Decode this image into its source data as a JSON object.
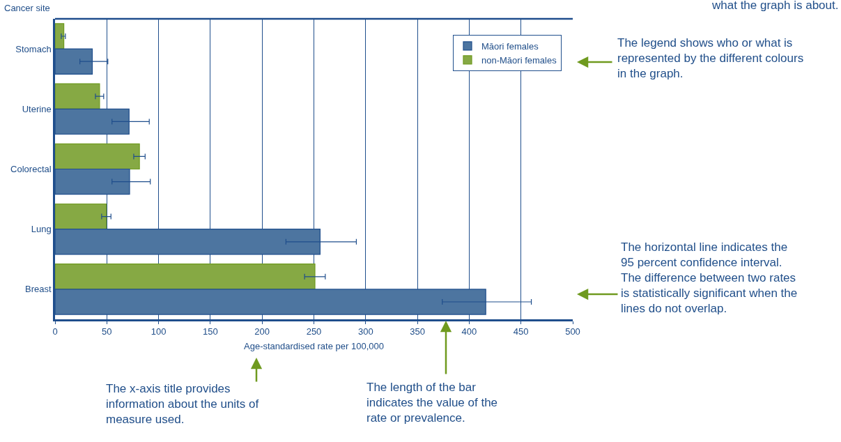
{
  "chart_data": {
    "type": "bar",
    "orientation": "horizontal",
    "xlabel": "Age-standardised rate per 100,000",
    "ylabel": "Cancer site",
    "categories": [
      "Stomach",
      "Uterine",
      "Colorectal",
      "Lung",
      "Breast"
    ],
    "series": [
      {
        "name": "Māori females",
        "color": "#4d75a0",
        "values": [
          36,
          71.5,
          72,
          256,
          416
        ],
        "errors": [
          [
            24,
            51
          ],
          [
            55,
            91
          ],
          [
            55,
            92
          ],
          [
            223,
            291
          ],
          [
            374,
            460
          ]
        ]
      },
      {
        "name": "non-Māori females",
        "color": "#86a944",
        "values": [
          8.5,
          43,
          81.5,
          49.5,
          251
        ],
        "errors": [
          [
            6,
            10
          ],
          [
            39,
            47
          ],
          [
            76,
            87
          ],
          [
            45,
            54
          ],
          [
            241,
            261
          ]
        ]
      }
    ],
    "xlim": [
      0,
      500
    ],
    "xticks": [
      0,
      50,
      100,
      150,
      200,
      250,
      300,
      350,
      400,
      450,
      500
    ],
    "grid": "x",
    "legend": "top right",
    "annotations": [
      "what the graph is about.",
      "The legend shows who or what is\nrepresented by the different colours\nin the graph.",
      "The horizontal line indicates the\n95 percent confidence interval.\nThe difference between two rates\nis statistically significant when the\nlines do not overlap.",
      "The x-axis title provides\ninformation about the units of\nmeasure used.",
      "The length of the bar\nindicates the value of the\nrate or prevalence."
    ]
  }
}
